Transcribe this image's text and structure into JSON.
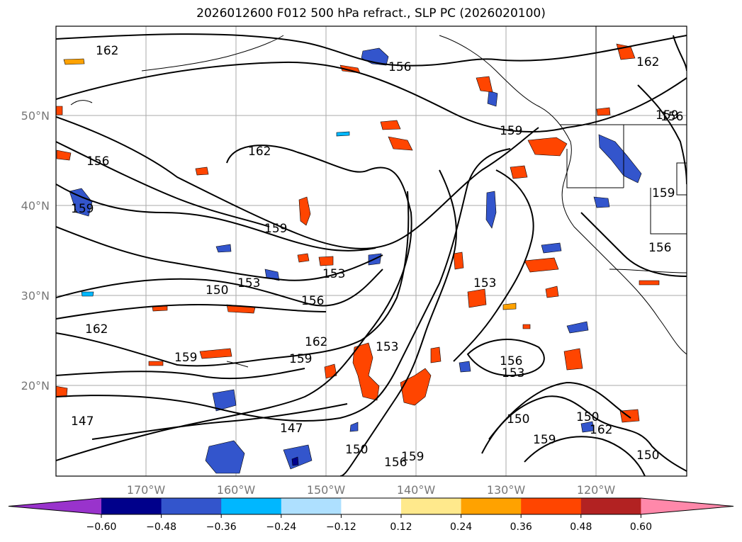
{
  "title": "2026012600 F012 500 hPa refract., SLP PC (2026020100)",
  "map": {
    "lat_labels": [
      "50°N",
      "40°N",
      "30°N",
      "20°N"
    ],
    "lon_labels": [
      "170°W",
      "160°W",
      "150°W",
      "140°W",
      "130°W",
      "120°W"
    ],
    "gridlines": true,
    "lat_range_deg": [
      10,
      60
    ],
    "lon_range_deg": [
      -180,
      -110
    ]
  },
  "contour_labels": [
    "162",
    "156",
    "162",
    "159",
    "162",
    "156",
    "159",
    "159",
    "159",
    "153",
    "150",
    "153",
    "156",
    "162",
    "153",
    "159",
    "159",
    "162",
    "153",
    "156",
    "153",
    "150",
    "156",
    "147",
    "147",
    "150",
    "156",
    "159",
    "150",
    "159",
    "162",
    "150",
    "159",
    "156"
  ],
  "colorbar": {
    "ticks": [
      "−0.60",
      "−0.48",
      "−0.36",
      "−0.24",
      "−0.12",
      "0.12",
      "0.24",
      "0.36",
      "0.48",
      "0.60"
    ],
    "colors": [
      "#9933cc",
      "#00008b",
      "#3355cc",
      "#00b7ff",
      "#aee0ff",
      "#ffffff",
      "#ffe98c",
      "#ffa200",
      "#ff4500",
      "#b22222",
      "#ff88aa"
    ],
    "extend": "both"
  }
}
